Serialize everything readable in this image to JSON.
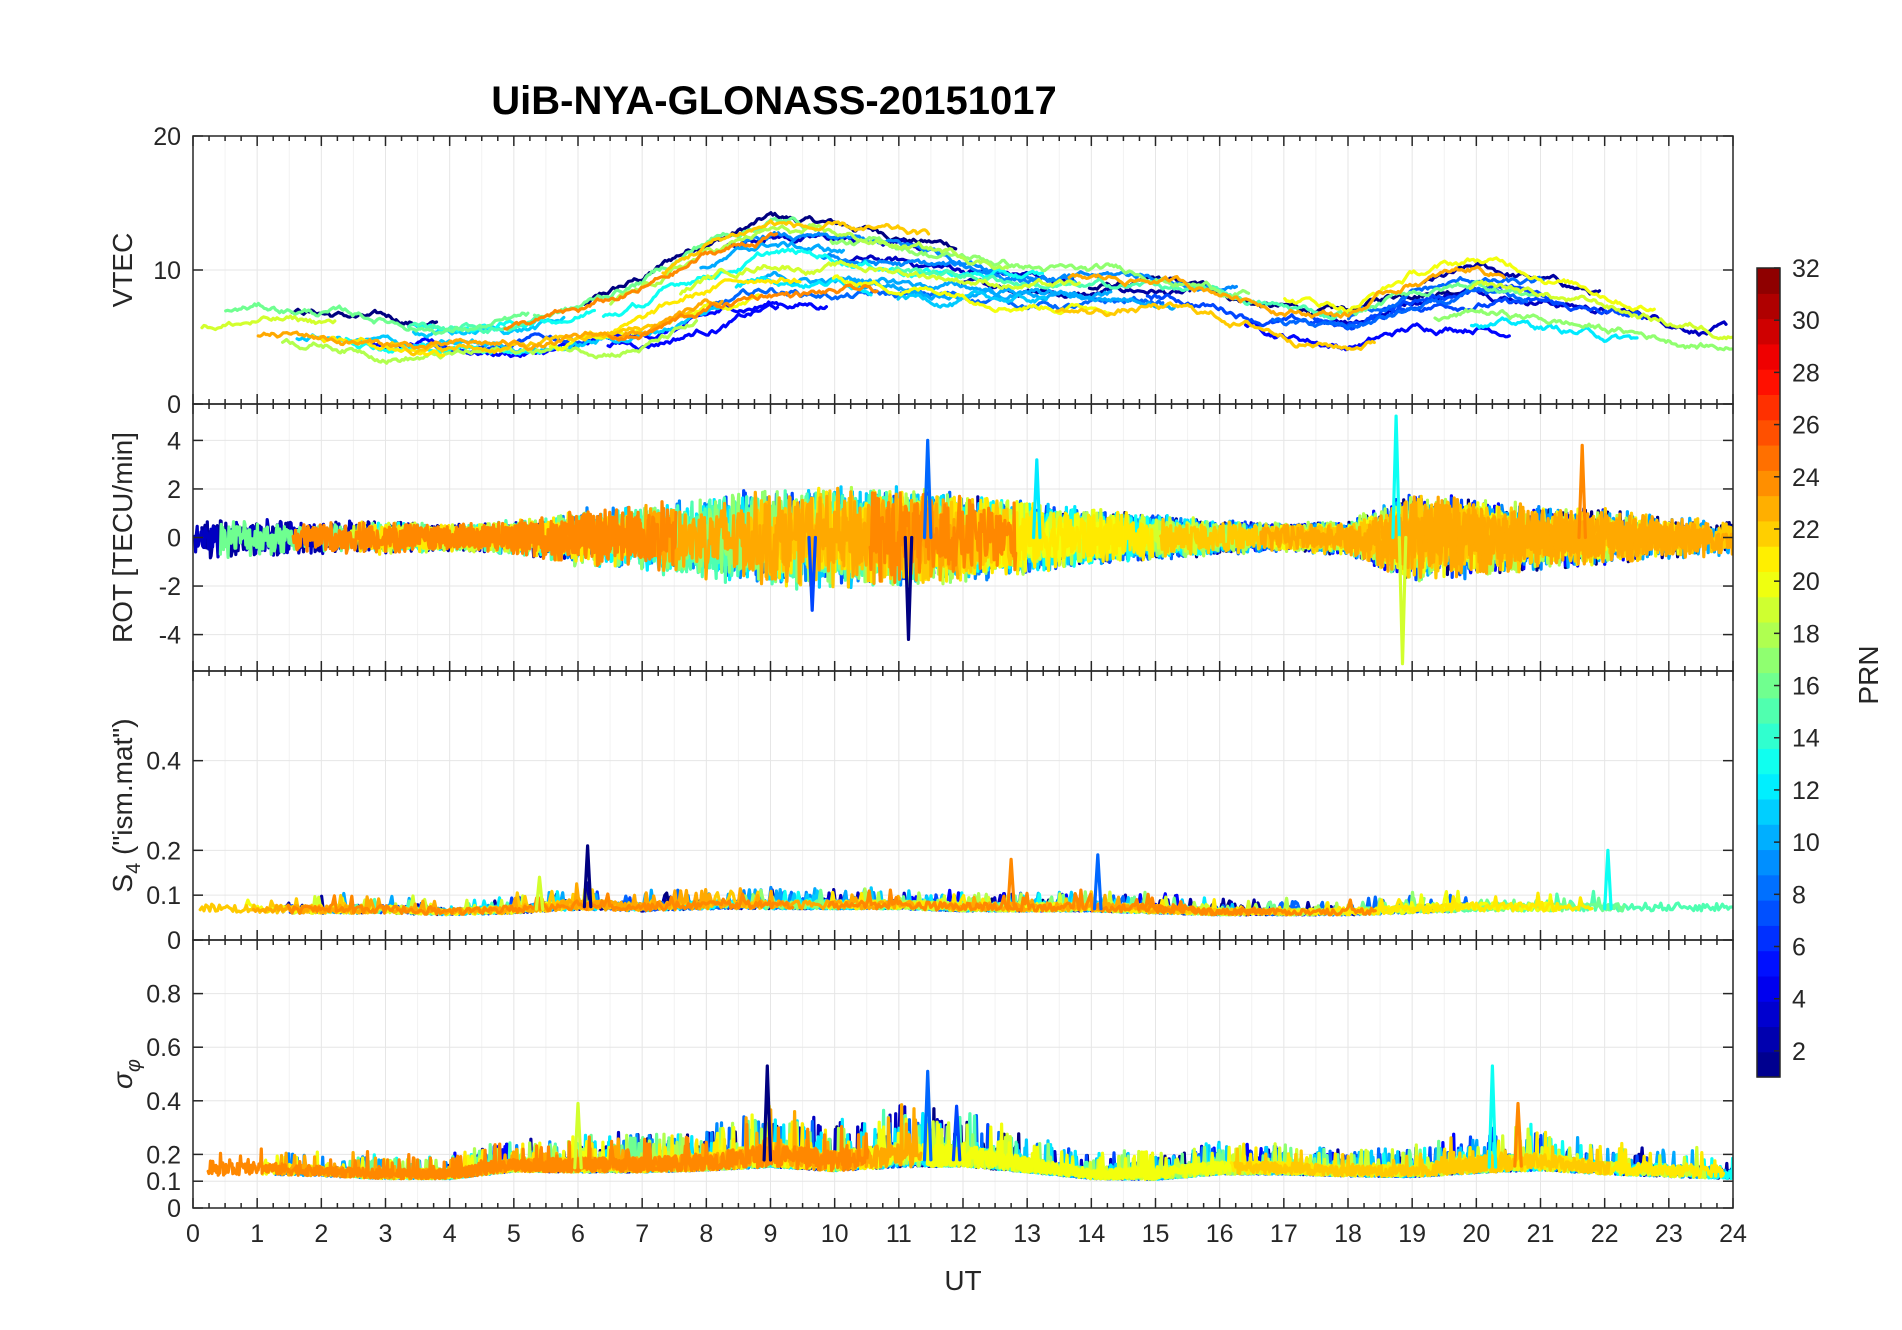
{
  "figure": {
    "title": "UiB-NYA-GLONASS-20151017"
  },
  "chart_data": [
    {
      "id": "vtec",
      "type": "line",
      "ylabel": "VTEC",
      "xlabel": "",
      "xlim": [
        0,
        24
      ],
      "ylim": [
        0,
        20
      ],
      "yticks": [
        0,
        10,
        20
      ],
      "xticks": [
        0,
        1,
        2,
        3,
        4,
        5,
        6,
        7,
        8,
        9,
        10,
        11,
        12,
        13,
        14,
        15,
        16,
        17,
        18,
        19,
        20,
        21,
        22,
        23,
        24
      ],
      "show_x_tick_labels": false,
      "grid": true,
      "envelope": {
        "x": [
          0,
          1,
          2,
          3,
          4,
          5,
          6,
          7,
          8,
          9,
          10,
          11,
          12,
          13,
          14,
          15,
          16,
          17,
          18,
          19,
          20,
          21,
          22,
          23,
          24
        ],
        "mean": [
          5.5,
          6.0,
          5.8,
          5.2,
          4.8,
          5.0,
          5.6,
          6.8,
          9.0,
          10.5,
          10.2,
          9.8,
          9.4,
          9.0,
          8.4,
          8.6,
          7.8,
          6.8,
          6.2,
          8.0,
          8.8,
          8.2,
          7.2,
          6.2,
          5.6
        ],
        "spread": [
          1.4,
          1.4,
          1.3,
          1.2,
          1.1,
          1.3,
          1.6,
          2.4,
          3.2,
          3.4,
          3.0,
          2.8,
          2.4,
          2.0,
          1.8,
          1.6,
          1.6,
          1.6,
          1.8,
          2.6,
          2.8,
          2.6,
          2.2,
          1.8,
          1.6
        ]
      }
    },
    {
      "id": "rot",
      "type": "line",
      "ylabel": "ROT [TECU/min]",
      "xlabel": "",
      "xlim": [
        0,
        24
      ],
      "ylim": [
        -5.5,
        5.5
      ],
      "yticks": [
        -4,
        -2,
        0,
        2,
        4
      ],
      "xticks": [
        0,
        1,
        2,
        3,
        4,
        5,
        6,
        7,
        8,
        9,
        10,
        11,
        12,
        13,
        14,
        15,
        16,
        17,
        18,
        19,
        20,
        21,
        22,
        23,
        24
      ],
      "show_x_tick_labels": false,
      "grid": true,
      "envelope": {
        "x": [
          0,
          1,
          2,
          3,
          4,
          5,
          6,
          7,
          8,
          9,
          10,
          11,
          12,
          13,
          14,
          15,
          16,
          17,
          18,
          19,
          20,
          21,
          22,
          23,
          24
        ],
        "mean": [
          0,
          0,
          0,
          0,
          0,
          0,
          0,
          0,
          0,
          0,
          0,
          0,
          0,
          0,
          0,
          0,
          0,
          0,
          0,
          0,
          0,
          0,
          0,
          0,
          0
        ],
        "spread": [
          0.7,
          0.7,
          0.6,
          0.6,
          0.5,
          0.6,
          1.0,
          1.2,
          1.5,
          1.8,
          1.8,
          1.8,
          1.6,
          1.3,
          1.0,
          0.8,
          0.6,
          0.5,
          0.6,
          1.6,
          1.4,
          1.2,
          1.0,
          0.8,
          0.6
        ]
      },
      "peaks": [
        {
          "x": 11.15,
          "y": -4.2
        },
        {
          "x": 11.45,
          "y": 4.0
        },
        {
          "x": 18.75,
          "y": 5.0
        },
        {
          "x": 18.85,
          "y": -5.2
        },
        {
          "x": 21.65,
          "y": 3.8
        },
        {
          "x": 9.65,
          "y": -3.0
        },
        {
          "x": 13.15,
          "y": 3.2
        }
      ]
    },
    {
      "id": "s4",
      "type": "line",
      "ylabel": "S4 (\"ism.mat\")",
      "ylabel_main": "S",
      "ylabel_sub": "4",
      "ylabel_rest": " (\"ism.mat\")",
      "xlabel": "",
      "xlim": [
        0,
        24
      ],
      "ylim": [
        0,
        0.6
      ],
      "yticks": [
        0,
        0.1,
        0.2,
        0.4
      ],
      "ytick_labels": [
        "0",
        "0.1",
        "0.2",
        "0.4"
      ],
      "xticks": [
        0,
        1,
        2,
        3,
        4,
        5,
        6,
        7,
        8,
        9,
        10,
        11,
        12,
        13,
        14,
        15,
        16,
        17,
        18,
        19,
        20,
        21,
        22,
        23,
        24
      ],
      "show_x_tick_labels": false,
      "grid": true,
      "envelope": {
        "x": [
          0,
          1,
          2,
          3,
          4,
          5,
          6,
          7,
          8,
          9,
          10,
          11,
          12,
          13,
          14,
          15,
          16,
          17,
          18,
          19,
          20,
          21,
          22,
          23,
          24
        ],
        "mean": [
          0.07,
          0.065,
          0.065,
          0.065,
          0.06,
          0.065,
          0.075,
          0.07,
          0.075,
          0.075,
          0.075,
          0.075,
          0.07,
          0.07,
          0.07,
          0.065,
          0.06,
          0.06,
          0.06,
          0.065,
          0.07,
          0.07,
          0.07,
          0.07,
          0.07
        ],
        "spread": [
          0.02,
          0.02,
          0.02,
          0.02,
          0.015,
          0.02,
          0.025,
          0.02,
          0.02,
          0.02,
          0.02,
          0.02,
          0.02,
          0.02,
          0.02,
          0.02,
          0.015,
          0.015,
          0.015,
          0.02,
          0.02,
          0.02,
          0.02,
          0.02,
          0.02
        ]
      },
      "peaks": [
        {
          "x": 6.15,
          "y": 0.21
        },
        {
          "x": 14.1,
          "y": 0.19
        },
        {
          "x": 22.05,
          "y": 0.2
        },
        {
          "x": 5.4,
          "y": 0.14
        },
        {
          "x": 12.75,
          "y": 0.18
        }
      ]
    },
    {
      "id": "sigma",
      "type": "line",
      "ylabel": "σφ",
      "ylabel_main": "σ",
      "ylabel_sub": "φ",
      "xlabel": "UT",
      "xlim": [
        0,
        24
      ],
      "ylim": [
        0,
        1
      ],
      "yticks": [
        0,
        0.1,
        0.2,
        0.4,
        0.6,
        0.8
      ],
      "ytick_labels": [
        "0",
        "0.1",
        "0.2",
        "0.4",
        "0.6",
        "0.8"
      ],
      "xticks": [
        0,
        1,
        2,
        3,
        4,
        5,
        6,
        7,
        8,
        9,
        10,
        11,
        12,
        13,
        14,
        15,
        16,
        17,
        18,
        19,
        20,
        21,
        22,
        23,
        24
      ],
      "show_x_tick_labels": true,
      "grid": true,
      "envelope": {
        "x": [
          0,
          1,
          2,
          3,
          4,
          5,
          6,
          7,
          8,
          9,
          10,
          11,
          12,
          13,
          14,
          15,
          16,
          17,
          18,
          19,
          20,
          21,
          22,
          23,
          24
        ],
        "mean": [
          0.13,
          0.14,
          0.13,
          0.12,
          0.12,
          0.15,
          0.15,
          0.15,
          0.16,
          0.18,
          0.16,
          0.18,
          0.18,
          0.15,
          0.12,
          0.12,
          0.14,
          0.14,
          0.13,
          0.13,
          0.15,
          0.16,
          0.14,
          0.13,
          0.12
        ],
        "spread": [
          0.04,
          0.05,
          0.04,
          0.04,
          0.04,
          0.05,
          0.06,
          0.06,
          0.07,
          0.1,
          0.08,
          0.1,
          0.09,
          0.06,
          0.04,
          0.05,
          0.05,
          0.05,
          0.04,
          0.05,
          0.07,
          0.07,
          0.05,
          0.05,
          0.04
        ]
      },
      "peaks": [
        {
          "x": 8.95,
          "y": 0.53
        },
        {
          "x": 11.45,
          "y": 0.51
        },
        {
          "x": 20.25,
          "y": 0.53
        },
        {
          "x": 6.0,
          "y": 0.39
        },
        {
          "x": 20.65,
          "y": 0.39
        },
        {
          "x": 11.9,
          "y": 0.38
        }
      ]
    }
  ],
  "colorbar": {
    "label": "PRN",
    "colormap": "jet",
    "range": [
      1,
      32
    ],
    "ticks": [
      2,
      4,
      6,
      8,
      10,
      12,
      14,
      16,
      18,
      20,
      22,
      24,
      26,
      28,
      30,
      32
    ],
    "levels": 32
  },
  "series_prns": [
    1,
    2,
    3,
    5,
    7,
    8,
    9,
    10,
    11,
    12,
    13,
    15,
    16,
    17,
    18,
    19,
    20,
    21,
    22,
    23,
    24
  ]
}
